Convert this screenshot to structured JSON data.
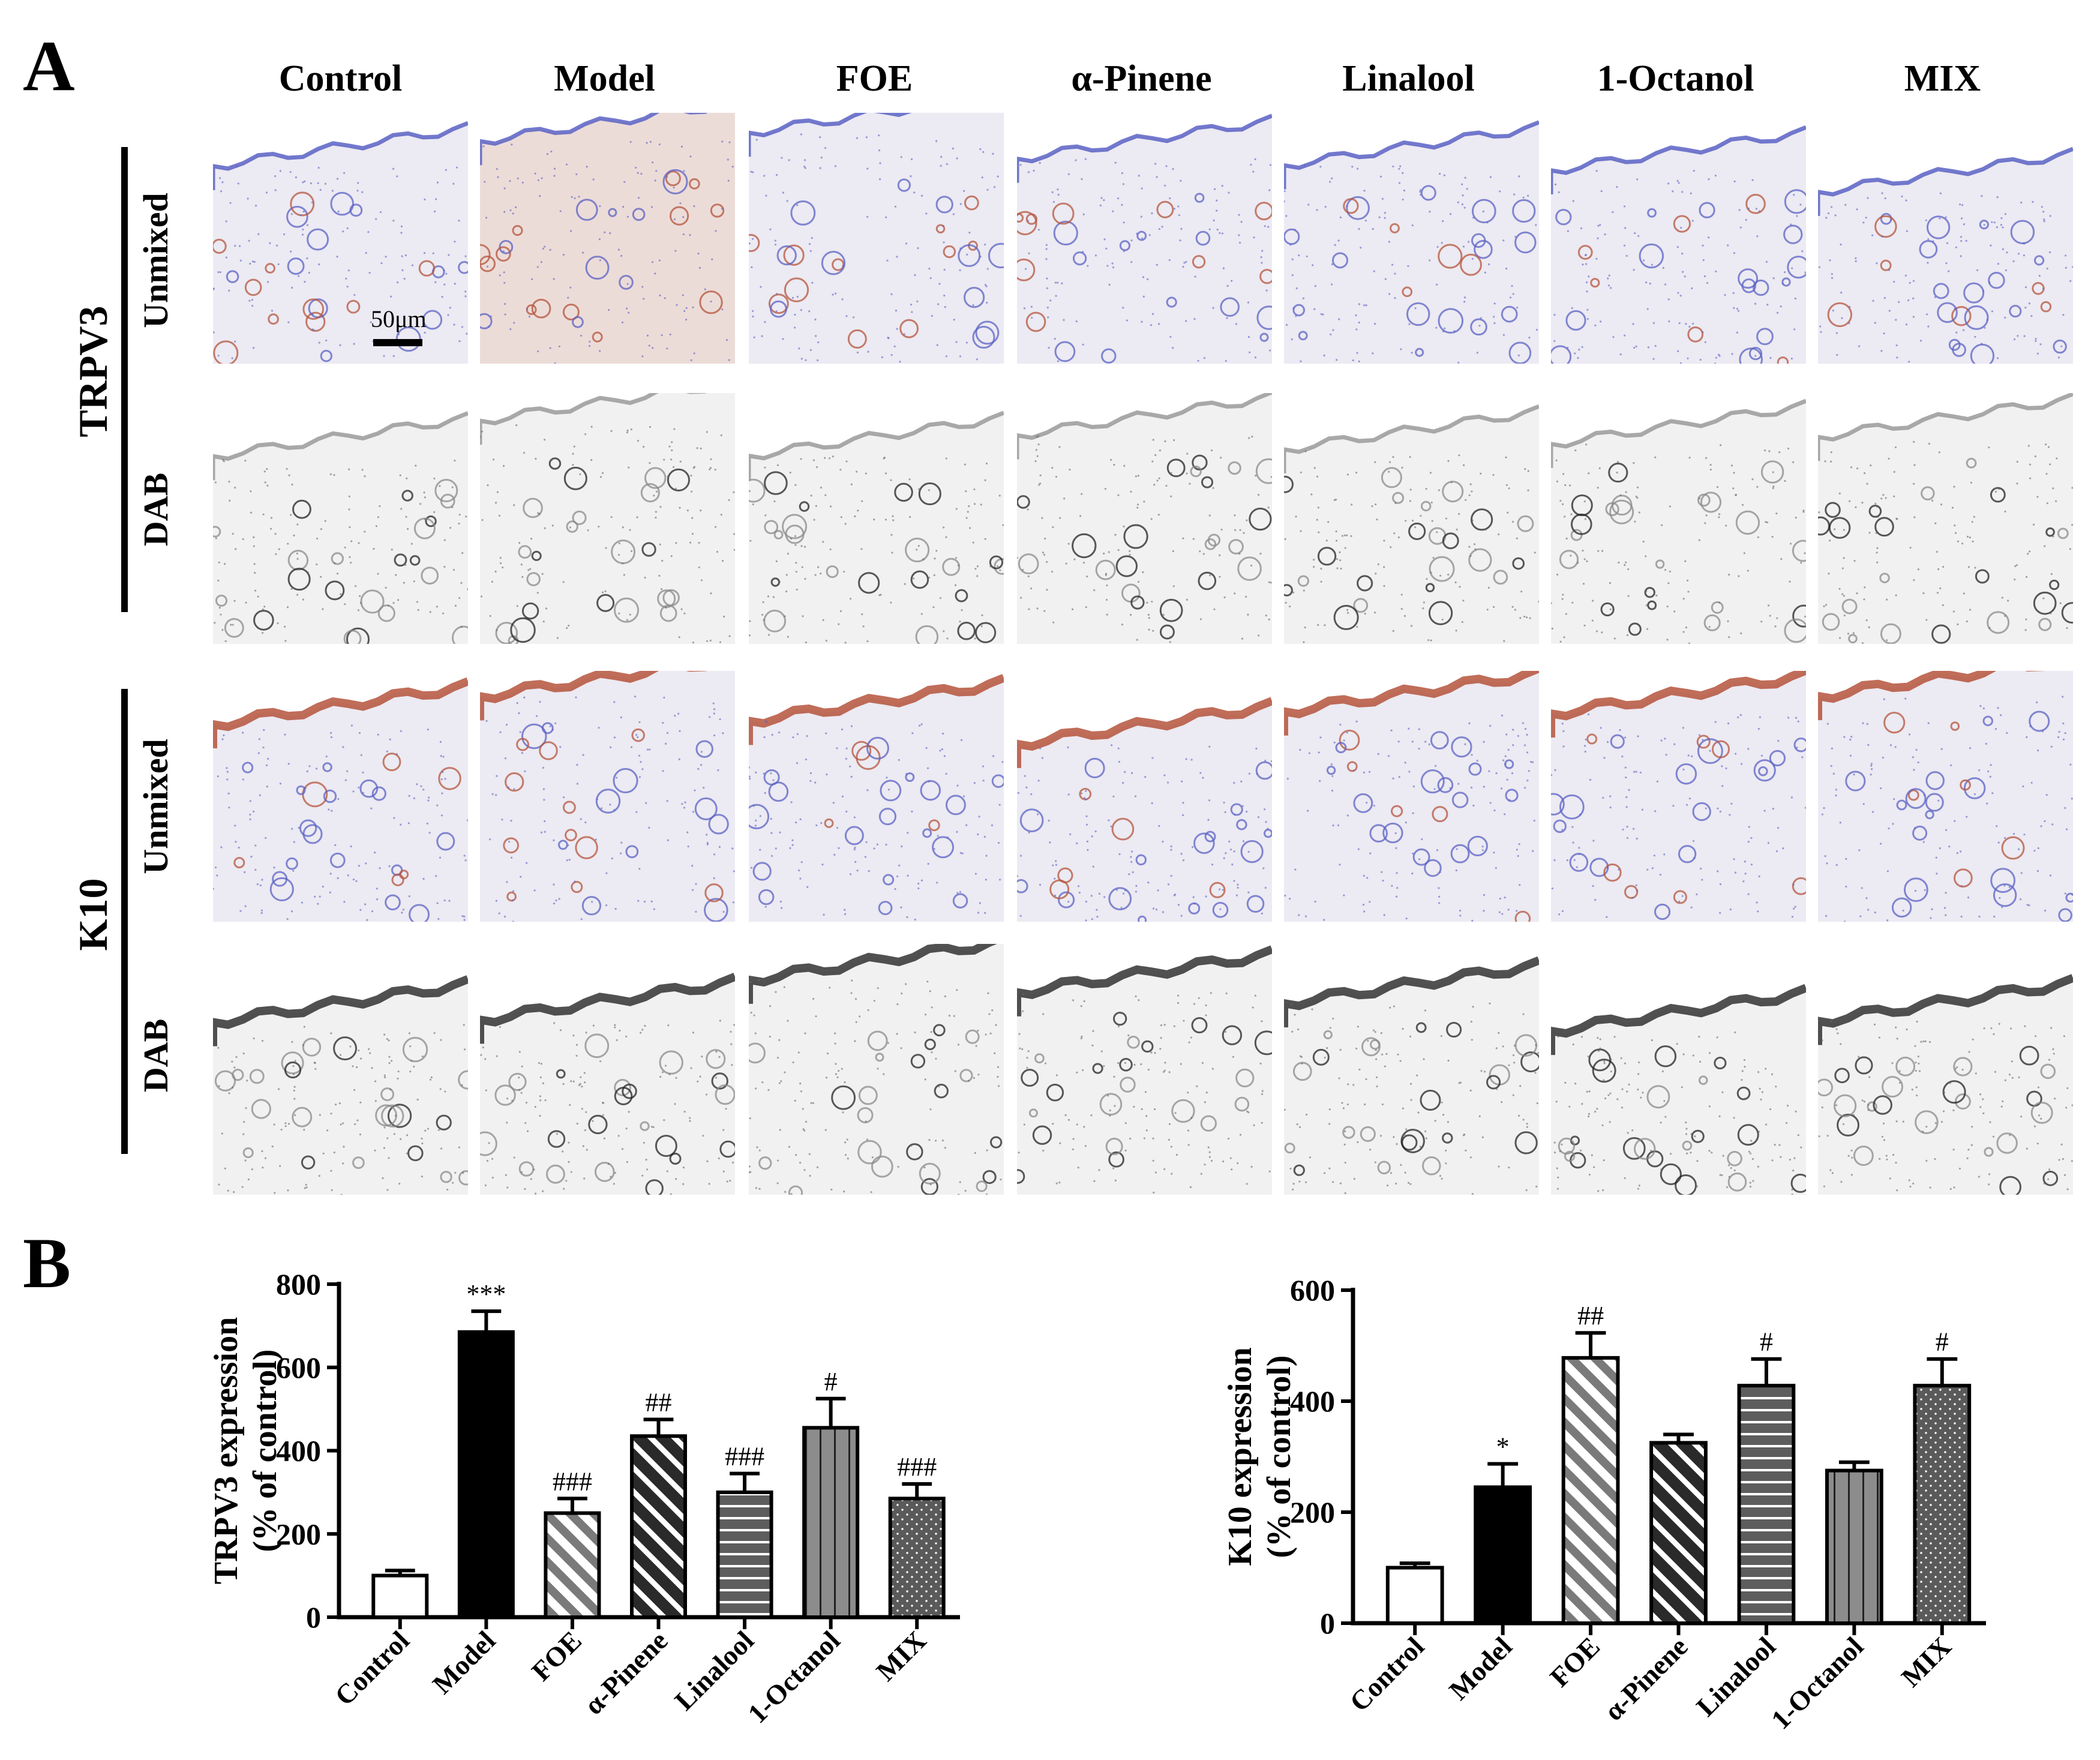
{
  "panel_a": {
    "letter": "A",
    "columns": [
      "Control",
      "Model",
      "FOE",
      "α-Pinene",
      "Linalool",
      "1-Octanol",
      "MIX"
    ],
    "groups": [
      {
        "name": "TRPV3",
        "rows": [
          "Unmixed",
          "DAB"
        ]
      },
      {
        "name": "K10",
        "rows": [
          "Unmixed",
          "DAB"
        ]
      }
    ],
    "scale_bar": "50μm",
    "colors": {
      "hematoxylin": "#5b62c4",
      "dab": "#b5543c",
      "grayscale": "#6a6a6a"
    }
  },
  "panel_b": {
    "letter": "B"
  },
  "chart_data": [
    {
      "type": "bar",
      "categories": [
        "Control",
        "Model",
        "FOE",
        "α-Pinene",
        "Linalool",
        "1-Octanol",
        "MIX"
      ],
      "values": [
        100,
        685,
        250,
        435,
        300,
        455,
        285
      ],
      "errors": [
        12,
        50,
        35,
        40,
        45,
        70,
        35
      ],
      "annotations": [
        "",
        "***",
        "###",
        "##",
        "###",
        "#",
        "###"
      ],
      "patterns": [
        "white",
        "black",
        "diagonal-gray",
        "diagonal-dark",
        "horizontal",
        "vertical",
        "dotted"
      ],
      "ylabel": "TRPV3 expression",
      "ylabel2": "(% of control)",
      "xlabel": "",
      "yticks": [
        0,
        200,
        400,
        600,
        800
      ],
      "ylim": [
        0,
        800
      ]
    },
    {
      "type": "bar",
      "categories": [
        "Control",
        "Model",
        "FOE",
        "α-Pinene",
        "Linalool",
        "1-Octanol",
        "MIX"
      ],
      "values": [
        100,
        245,
        478,
        325,
        428,
        275,
        428
      ],
      "errors": [
        8,
        42,
        45,
        15,
        48,
        15,
        48
      ],
      "annotations": [
        "",
        "*",
        "##",
        "",
        "#",
        "",
        "#"
      ],
      "patterns": [
        "white",
        "black",
        "diagonal-gray",
        "diagonal-dark",
        "horizontal",
        "vertical",
        "dotted"
      ],
      "ylabel": "K10 expression",
      "ylabel2": "(% of control)",
      "xlabel": "",
      "yticks": [
        0,
        200,
        400,
        600
      ],
      "ylim": [
        0,
        600
      ]
    }
  ]
}
